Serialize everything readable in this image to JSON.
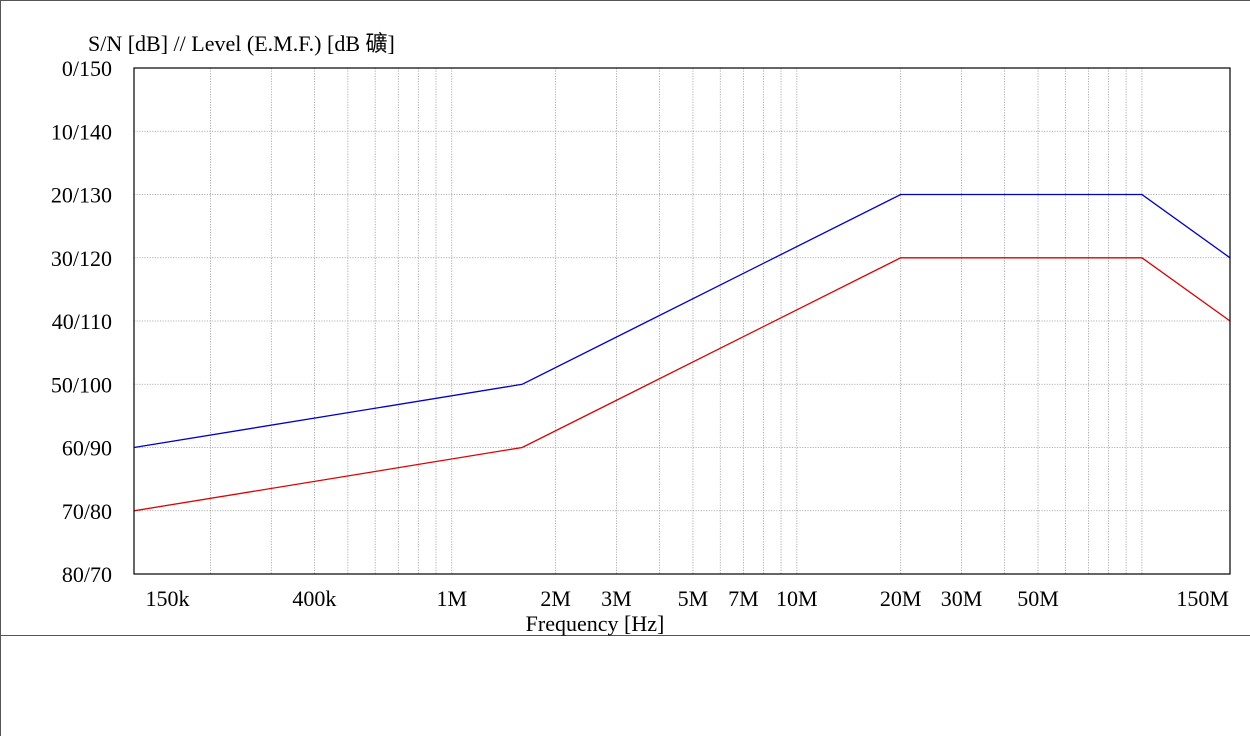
{
  "chart_data": {
    "type": "line",
    "title": "S/N [dB] // Level (E.M.F.) [dB 礦]",
    "xlabel": "Frequency [Hz]",
    "ylabel": "",
    "xscale": "log",
    "xlim": [
      120000,
      180000000
    ],
    "ylim_sn": [
      0,
      80
    ],
    "ylim_level": [
      150,
      70
    ],
    "y_tick_labels": [
      "0/150",
      "10/140",
      "20/130",
      "30/120",
      "40/110",
      "50/100",
      "60/90",
      "70/80",
      "80/70"
    ],
    "x_tick_labels": [
      {
        "label": "150k",
        "value": 150000
      },
      {
        "label": "400k",
        "value": 400000
      },
      {
        "label": "1M",
        "value": 1000000
      },
      {
        "label": "2M",
        "value": 2000000
      },
      {
        "label": "3M",
        "value": 3000000
      },
      {
        "label": "5M",
        "value": 5000000
      },
      {
        "label": "7M",
        "value": 7000000
      },
      {
        "label": "10M",
        "value": 10000000
      },
      {
        "label": "20M",
        "value": 20000000
      },
      {
        "label": "30M",
        "value": 30000000
      },
      {
        "label": "50M",
        "value": 50000000
      },
      {
        "label": "150M",
        "value": 150000000
      }
    ],
    "grid": true,
    "series": [
      {
        "color": "#0000cc",
        "points": [
          {
            "x": 120000,
            "sn": 60
          },
          {
            "x": 1600000,
            "sn": 50
          },
          {
            "x": 20000000,
            "sn": 20
          },
          {
            "x": 100000000,
            "sn": 20
          },
          {
            "x": 180000000,
            "sn": 30
          }
        ]
      },
      {
        "color": "#e00000",
        "points": [
          {
            "x": 120000,
            "sn": 70
          },
          {
            "x": 1600000,
            "sn": 60
          },
          {
            "x": 20000000,
            "sn": 30
          },
          {
            "x": 100000000,
            "sn": 30
          },
          {
            "x": 180000000,
            "sn": 40
          }
        ]
      }
    ]
  }
}
